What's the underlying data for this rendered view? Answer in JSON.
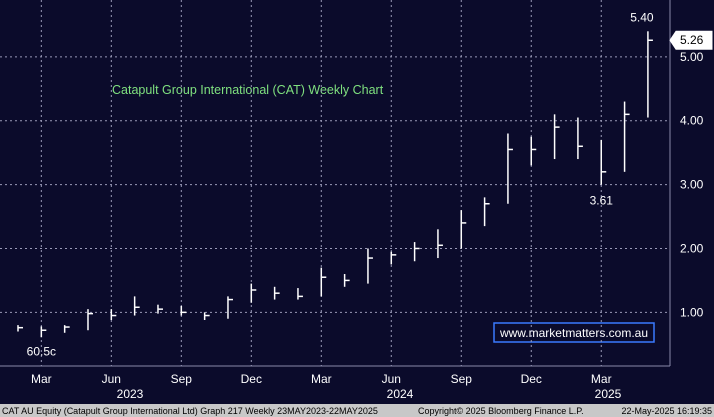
{
  "chart_data": {
    "type": "ohlc",
    "title": "Catapult Group International (CAT) Weekly Chart",
    "categories": [
      null,
      "Mar",
      null,
      null,
      "Jun",
      null,
      null,
      "Sep",
      null,
      null,
      "Dec",
      null,
      null,
      "Mar",
      null,
      null,
      "Jun",
      null,
      null,
      "Sep",
      null,
      null,
      "Dec",
      null,
      null,
      "Mar",
      null,
      null
    ],
    "years": [
      "2023",
      "2024",
      "2025"
    ],
    "high": [
      0.8,
      0.78,
      0.8,
      1.05,
      1.05,
      1.25,
      1.12,
      1.1,
      1.0,
      1.25,
      1.45,
      1.4,
      1.38,
      1.7,
      1.6,
      2.0,
      1.95,
      2.1,
      2.3,
      2.6,
      2.8,
      3.8,
      3.75,
      4.1,
      4.05,
      3.7,
      4.3,
      5.4
    ],
    "low": [
      0.7,
      0.61,
      0.68,
      0.72,
      0.88,
      0.95,
      0.98,
      0.95,
      0.88,
      0.9,
      1.15,
      1.2,
      1.2,
      1.25,
      1.4,
      1.45,
      1.75,
      1.8,
      1.85,
      2.0,
      2.35,
      2.7,
      3.3,
      3.4,
      3.4,
      3.0,
      3.2,
      4.05
    ],
    "close": [
      0.76,
      0.72,
      0.77,
      0.98,
      0.95,
      1.08,
      1.05,
      1.0,
      0.95,
      1.2,
      1.35,
      1.3,
      1.25,
      1.55,
      1.5,
      1.85,
      1.9,
      2.0,
      2.05,
      2.4,
      2.7,
      3.55,
      3.55,
      3.9,
      3.6,
      3.2,
      4.1,
      5.26
    ],
    "color": "#ffffff",
    "annotations": [
      "60.5c",
      "3.61",
      "5.40"
    ],
    "last_value": 5.26,
    "last_value_label": "5.26",
    "ylim": [
      0.16,
      5.89
    ],
    "yticks": [
      {
        "value": 1,
        "label": "1.00"
      },
      {
        "value": 2,
        "label": "2.00"
      },
      {
        "value": 3,
        "label": "3.00"
      },
      {
        "value": 4,
        "label": "4.00"
      },
      {
        "value": 5,
        "label": "5.00"
      }
    ],
    "grid": true,
    "watermark": "www.marketmatters.com.au",
    "footer": [
      "CAT AU Equity (Catapult Group International Ltd) Graph 217  Weekly 23MAY2023-22MAY2025",
      "Copyright© 2025 Bloomberg Finance L.P.",
      "22-May-2025 16:19:35"
    ]
  }
}
